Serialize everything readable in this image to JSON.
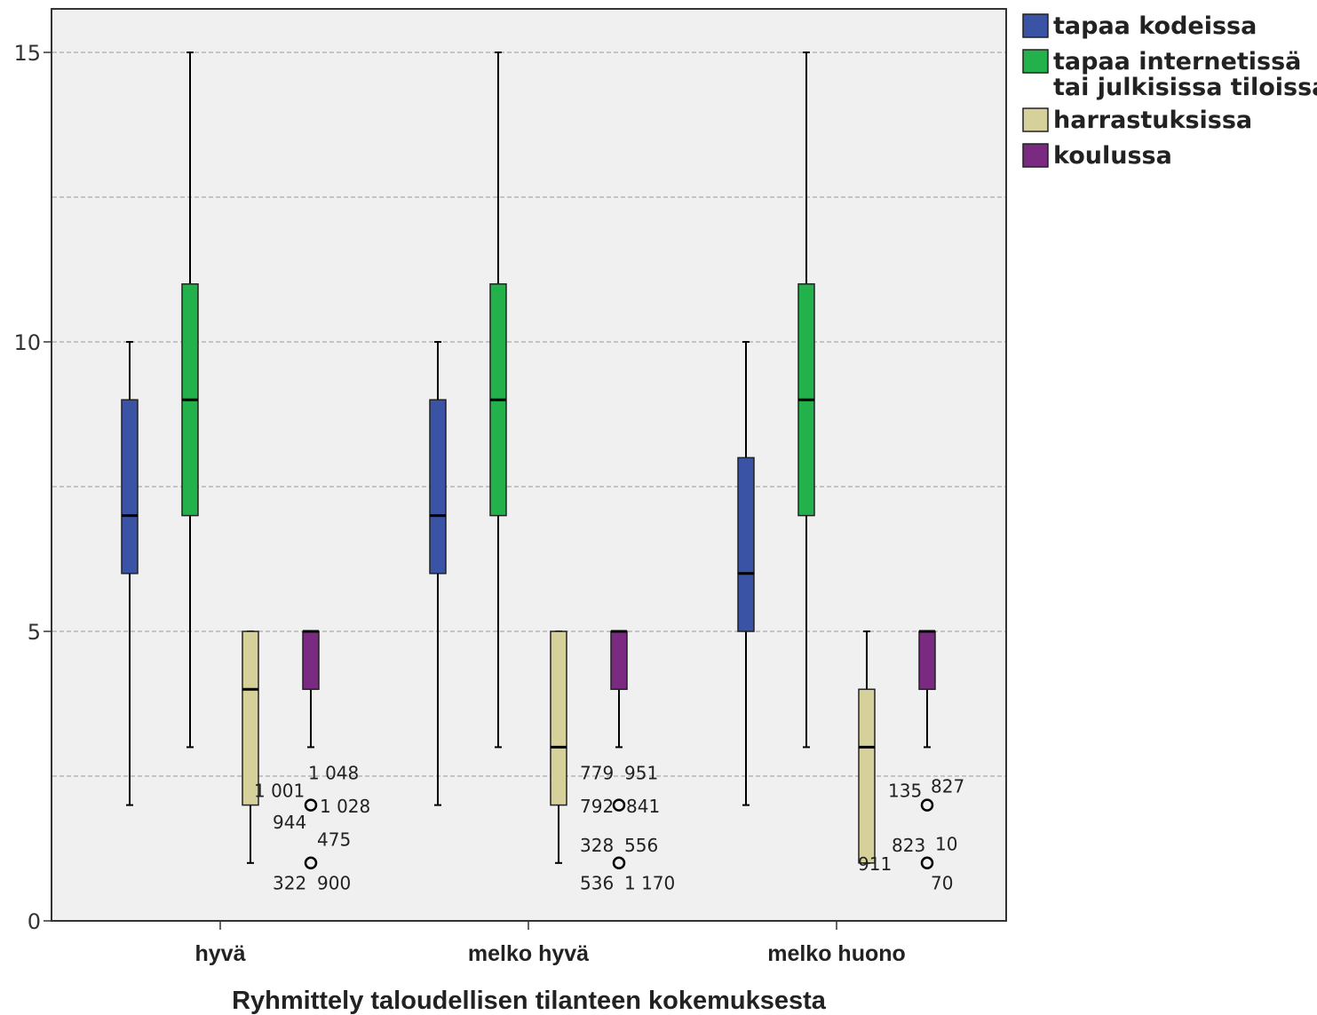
{
  "chart_data": {
    "type": "boxplot",
    "title": "",
    "xlabel": "Ryhmittely taloudellisen tilanteen kokemuksesta",
    "ylabel": "",
    "ylim": [
      0,
      16
    ],
    "yticks": [
      0,
      5,
      10,
      15
    ],
    "grid": "horizontal dashed",
    "legend_position": "right",
    "categories": [
      "hyvä",
      "melko hyvä",
      "melko huono"
    ],
    "series": [
      {
        "name": "tapaa kodeissa",
        "color": "#3b53a4",
        "boxes": [
          {
            "min": 2,
            "q1": 6,
            "median": 7,
            "q3": 9,
            "max": 10,
            "outliers": []
          },
          {
            "min": 2,
            "q1": 6,
            "median": 7,
            "q3": 9,
            "max": 10,
            "outliers": []
          },
          {
            "min": 2,
            "q1": 5,
            "median": 6,
            "q3": 8,
            "max": 10,
            "outliers": []
          }
        ]
      },
      {
        "name": "tapaa internetissä tai julkisissa tiloissa",
        "legend_lines": [
          "tapaa internetissä",
          "tai julkisissa tiloissa"
        ],
        "color": "#23b14c",
        "boxes": [
          {
            "min": 3,
            "q1": 7,
            "median": 9,
            "q3": 11,
            "max": 15,
            "outliers": []
          },
          {
            "min": 3,
            "q1": 7,
            "median": 9,
            "q3": 11,
            "max": 15,
            "outliers": []
          },
          {
            "min": 3,
            "q1": 7,
            "median": 9,
            "q3": 11,
            "max": 15,
            "outliers": []
          }
        ]
      },
      {
        "name": "harrastuksissa",
        "color": "#d6d09a",
        "boxes": [
          {
            "min": 1,
            "q1": 2,
            "median": 4,
            "q3": 5,
            "max": 5,
            "outliers": []
          },
          {
            "min": 1,
            "q1": 2,
            "median": 3,
            "q3": 5,
            "max": 5,
            "outliers": []
          },
          {
            "min": 1,
            "q1": 1,
            "median": 3,
            "q3": 4,
            "max": 5,
            "outliers": []
          }
        ]
      },
      {
        "name": "koulussa",
        "color": "#7b2a82",
        "boxes": [
          {
            "min": 3,
            "q1": 4,
            "median": 5,
            "q3": 5,
            "max": 5,
            "outliers": [
              2,
              1
            ]
          },
          {
            "min": 3,
            "q1": 4,
            "median": 5,
            "q3": 5,
            "max": 5,
            "outliers": [
              2,
              1
            ]
          },
          {
            "min": 3,
            "q1": 4,
            "median": 5,
            "q3": 5,
            "max": 5,
            "outliers": [
              2,
              1
            ]
          }
        ]
      }
    ],
    "annotations": [
      {
        "text": "1 048",
        "cat": 0,
        "dx": -3,
        "y": 2.55
      },
      {
        "text": "1 001",
        "cat": 0,
        "dx": -64,
        "y": 2.25
      },
      {
        "text": "1 028",
        "cat": 0,
        "dx": 10,
        "y": 1.98
      },
      {
        "text": "944",
        "cat": 0,
        "dx": -43,
        "y": 1.7
      },
      {
        "text": "475",
        "cat": 0,
        "dx": 7,
        "y": 1.4
      },
      {
        "text": "322",
        "cat": 0,
        "dx": -43,
        "y": 0.65
      },
      {
        "text": "900",
        "cat": 0,
        "dx": 7,
        "y": 0.65
      },
      {
        "text": "779",
        "cat": 1,
        "dx": -44,
        "y": 2.55
      },
      {
        "text": "951",
        "cat": 1,
        "dx": 6,
        "y": 2.55
      },
      {
        "text": "792",
        "cat": 1,
        "dx": -44,
        "y": 1.98
      },
      {
        "text": "841",
        "cat": 1,
        "dx": 8,
        "y": 1.98
      },
      {
        "text": "328",
        "cat": 1,
        "dx": -44,
        "y": 1.3
      },
      {
        "text": "556",
        "cat": 1,
        "dx": 6,
        "y": 1.3
      },
      {
        "text": "536",
        "cat": 1,
        "dx": -44,
        "y": 0.65
      },
      {
        "text": "1 170",
        "cat": 1,
        "dx": 6,
        "y": 0.65
      },
      {
        "text": "135",
        "cat": 2,
        "dx": -44,
        "y": 2.25
      },
      {
        "text": "827",
        "cat": 2,
        "dx": 4,
        "y": 2.32
      },
      {
        "text": "823",
        "cat": 2,
        "dx": -40,
        "y": 1.3
      },
      {
        "text": "10",
        "cat": 2,
        "dx": 9,
        "y": 1.33
      },
      {
        "text": "911",
        "cat": 2,
        "dx": -78,
        "y": 0.98
      },
      {
        "text": "70",
        "cat": 2,
        "dx": 4,
        "y": 0.65
      }
    ]
  }
}
